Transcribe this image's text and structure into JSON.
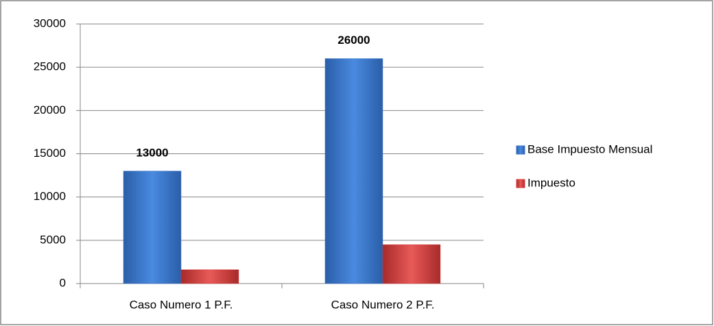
{
  "chart_data": {
    "type": "bar",
    "categories": [
      "Caso Numero 1 P.F.",
      "Caso Numero 2 P.F."
    ],
    "series": [
      {
        "name": "Base Impuesto Mensual",
        "color": "#3a73c8",
        "values": [
          13000,
          26000
        ],
        "data_labels": true
      },
      {
        "name": "Impuesto",
        "color": "#d9403f",
        "values": [
          1600,
          4500
        ],
        "data_labels": false
      }
    ],
    "ylim": [
      0,
      30000
    ],
    "yticks": [
      0,
      5000,
      10000,
      15000,
      20000,
      25000,
      30000
    ],
    "grid": true,
    "legend": "right"
  }
}
